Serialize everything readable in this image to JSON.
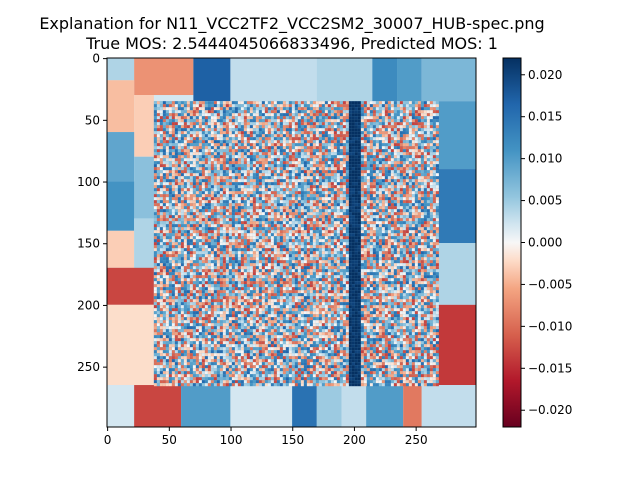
{
  "chart_data": {
    "type": "heatmap",
    "title_line1": "Explanation for N11_VCC2TF2_VCC2SM2_30007_HUB-spec.png",
    "title_line2": "True MOS: 2.5444045066833496, Predicted MOS: 1",
    "xlabel": "",
    "ylabel": "",
    "x_range": [
      0,
      299
    ],
    "y_range": [
      0,
      299
    ],
    "y_inverted": true,
    "x_ticks": [
      0,
      50,
      100,
      150,
      200,
      250
    ],
    "y_ticks": [
      0,
      50,
      100,
      150,
      200,
      250
    ],
    "colormap": "RdBu",
    "colorbar": {
      "range": [
        -0.022,
        0.022
      ],
      "ticks": [
        0.02,
        0.015,
        0.01,
        0.005,
        0.0,
        -0.005,
        -0.01,
        -0.015,
        -0.02
      ],
      "tick_labels": [
        "0.020",
        "0.015",
        "0.010",
        "0.005",
        "0.000",
        "−0.005",
        "−0.010",
        "−0.015",
        "−0.020"
      ]
    },
    "inner_region": {
      "x": [
        38,
        268
      ],
      "y": [
        35,
        265
      ]
    },
    "segments": [
      {
        "x": [
          0,
          22
        ],
        "y": [
          0,
          18
        ],
        "v": 0.004
      },
      {
        "x": [
          22,
          70
        ],
        "y": [
          0,
          30
        ],
        "v": -0.007
      },
      {
        "x": [
          70,
          100
        ],
        "y": [
          0,
          35
        ],
        "v": 0.017
      },
      {
        "x": [
          100,
          170
        ],
        "y": [
          0,
          35
        ],
        "v": 0.003
      },
      {
        "x": [
          170,
          215
        ],
        "y": [
          0,
          35
        ],
        "v": 0.004
      },
      {
        "x": [
          215,
          235
        ],
        "y": [
          0,
          35
        ],
        "v": 0.012
      },
      {
        "x": [
          235,
          255
        ],
        "y": [
          0,
          35
        ],
        "v": 0.01
      },
      {
        "x": [
          255,
          299
        ],
        "y": [
          0,
          35
        ],
        "v": 0.007
      },
      {
        "x": [
          0,
          22
        ],
        "y": [
          18,
          60
        ],
        "v": -0.004
      },
      {
        "x": [
          22,
          38
        ],
        "y": [
          30,
          80
        ],
        "v": -0.003
      },
      {
        "x": [
          0,
          22
        ],
        "y": [
          60,
          100
        ],
        "v": 0.009
      },
      {
        "x": [
          22,
          38
        ],
        "y": [
          80,
          130
        ],
        "v": 0.006
      },
      {
        "x": [
          0,
          22
        ],
        "y": [
          100,
          140
        ],
        "v": 0.011
      },
      {
        "x": [
          0,
          22
        ],
        "y": [
          140,
          170
        ],
        "v": -0.003
      },
      {
        "x": [
          22,
          38
        ],
        "y": [
          130,
          175
        ],
        "v": 0.004
      },
      {
        "x": [
          0,
          38
        ],
        "y": [
          170,
          200
        ],
        "v": -0.013
      },
      {
        "x": [
          0,
          38
        ],
        "y": [
          200,
          265
        ],
        "v": -0.002
      },
      {
        "x": [
          268,
          299
        ],
        "y": [
          35,
          90
        ],
        "v": 0.01
      },
      {
        "x": [
          268,
          299
        ],
        "y": [
          90,
          150
        ],
        "v": 0.014
      },
      {
        "x": [
          268,
          299
        ],
        "y": [
          150,
          200
        ],
        "v": 0.004
      },
      {
        "x": [
          268,
          299
        ],
        "y": [
          200,
          265
        ],
        "v": -0.014
      },
      {
        "x": [
          0,
          22
        ],
        "y": [
          265,
          299
        ],
        "v": 0.002
      },
      {
        "x": [
          22,
          60
        ],
        "y": [
          265,
          299
        ],
        "v": -0.013
      },
      {
        "x": [
          60,
          100
        ],
        "y": [
          265,
          299
        ],
        "v": 0.01
      },
      {
        "x": [
          100,
          150
        ],
        "y": [
          265,
          299
        ],
        "v": 0.002
      },
      {
        "x": [
          150,
          170
        ],
        "y": [
          265,
          299
        ],
        "v": 0.015
      },
      {
        "x": [
          170,
          190
        ],
        "y": [
          265,
          299
        ],
        "v": 0.005
      },
      {
        "x": [
          190,
          210
        ],
        "y": [
          265,
          299
        ],
        "v": 0.003
      },
      {
        "x": [
          210,
          240
        ],
        "y": [
          265,
          299
        ],
        "v": 0.01
      },
      {
        "x": [
          240,
          255
        ],
        "y": [
          265,
          299
        ],
        "v": -0.009
      },
      {
        "x": [
          255,
          299
        ],
        "y": [
          265,
          299
        ],
        "v": 0.003
      }
    ]
  }
}
